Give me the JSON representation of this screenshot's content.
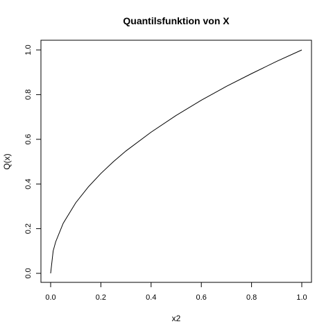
{
  "chart_data": {
    "type": "line",
    "title": "Quantilsfunktion von X",
    "xlabel": "x2",
    "ylabel": "Q(x)",
    "xlim": [
      0,
      1
    ],
    "ylim": [
      0,
      1
    ],
    "grid": false,
    "x_ticks": [
      "0.0",
      "0.2",
      "0.4",
      "0.6",
      "0.8",
      "1.0"
    ],
    "y_ticks": [
      "0.0",
      "0.2",
      "0.4",
      "0.6",
      "0.8",
      "1.0"
    ],
    "series": [
      {
        "color": "#000000",
        "x": [
          0.0,
          0.01,
          0.02,
          0.05,
          0.1,
          0.15,
          0.2,
          0.25,
          0.3,
          0.4,
          0.5,
          0.6,
          0.7,
          0.8,
          0.9,
          1.0
        ],
        "y": [
          0.0,
          0.1,
          0.141,
          0.224,
          0.316,
          0.387,
          0.447,
          0.5,
          0.548,
          0.632,
          0.707,
          0.775,
          0.837,
          0.894,
          0.949,
          1.0
        ]
      }
    ]
  }
}
